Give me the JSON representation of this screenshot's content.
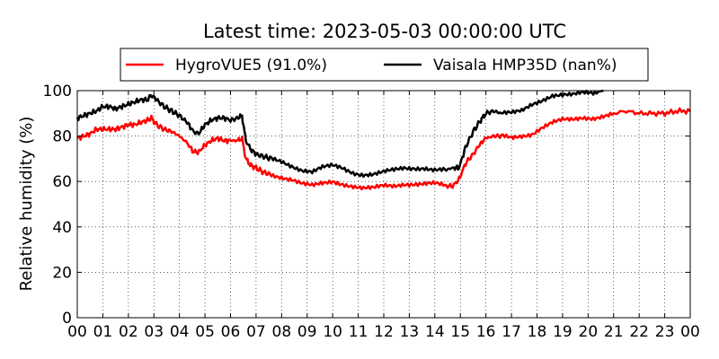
{
  "chart_data": {
    "type": "line",
    "title": "Latest time: 2023-05-03 00:00:00 UTC",
    "xlabel": "",
    "ylabel": "Relative humidity (%)",
    "xlim": [
      0,
      24
    ],
    "ylim": [
      0,
      100
    ],
    "x_ticks": [
      "00",
      "01",
      "02",
      "03",
      "04",
      "05",
      "06",
      "07",
      "08",
      "09",
      "10",
      "11",
      "12",
      "13",
      "14",
      "15",
      "16",
      "17",
      "18",
      "19",
      "20",
      "21",
      "22",
      "23",
      "00"
    ],
    "y_ticks": [
      0,
      20,
      40,
      60,
      80,
      100
    ],
    "grid": true,
    "legend_position": "top",
    "x_unit": "hour",
    "series": [
      {
        "name": "HygroVUE5 (91.0%)",
        "color": "#ff0000",
        "x": [
          0,
          0.25,
          0.5,
          0.75,
          1.0,
          1.25,
          1.5,
          1.75,
          2.0,
          2.25,
          2.5,
          2.75,
          2.9,
          3.1,
          3.4,
          3.7,
          4.0,
          4.3,
          4.55,
          4.75,
          5.0,
          5.25,
          5.5,
          5.75,
          6.0,
          6.3,
          6.45,
          6.6,
          6.8,
          7.0,
          7.3,
          7.6,
          8.0,
          8.4,
          8.8,
          9.2,
          9.6,
          10.0,
          10.4,
          10.8,
          11.2,
          11.6,
          12.0,
          12.4,
          12.8,
          13.2,
          13.6,
          14.0,
          14.4,
          14.7,
          14.95,
          15.2,
          15.5,
          15.8,
          16.0,
          16.3,
          16.6,
          17.0,
          17.4,
          17.8,
          18.2,
          18.6,
          19.0,
          19.4,
          19.8,
          20.2,
          20.6,
          21.0,
          21.5,
          22.0,
          22.5,
          23.0,
          23.5,
          24.0
        ],
        "y": [
          79,
          80,
          81,
          83,
          83,
          83,
          83,
          84,
          85,
          85,
          86,
          87,
          88,
          85,
          83,
          82,
          80,
          77,
          73,
          73,
          76,
          78,
          79,
          78,
          78,
          78,
          79,
          70,
          67,
          66,
          64,
          63,
          62,
          61,
          59,
          58,
          59,
          60,
          59,
          58,
          57,
          57,
          58,
          58,
          59,
          59,
          59,
          59,
          58,
          58,
          61,
          68,
          72,
          77,
          79,
          80,
          80,
          79,
          80,
          81,
          84,
          86,
          87,
          87,
          88,
          88,
          89,
          90,
          91,
          90,
          90,
          90,
          91,
          91
        ]
      },
      {
        "name": "Vaisala HMP35D (nan%)",
        "color": "#000000",
        "x": [
          0,
          0.25,
          0.5,
          0.75,
          1.0,
          1.25,
          1.5,
          1.75,
          2.0,
          2.25,
          2.5,
          2.75,
          2.9,
          3.1,
          3.4,
          3.7,
          4.0,
          4.3,
          4.55,
          4.75,
          5.0,
          5.25,
          5.5,
          5.75,
          6.0,
          6.3,
          6.45,
          6.6,
          6.8,
          7.0,
          7.3,
          7.6,
          8.0,
          8.4,
          8.8,
          9.2,
          9.6,
          10.0,
          10.4,
          10.8,
          11.2,
          11.6,
          12.0,
          12.4,
          12.8,
          13.2,
          13.6,
          14.0,
          14.4,
          14.7,
          14.95,
          15.2,
          15.5,
          15.8,
          16.0,
          16.3,
          16.6,
          17.0,
          17.4,
          17.8,
          18.2,
          18.6,
          19.0,
          19.4,
          19.8,
          20.2,
          20.6
        ],
        "y": [
          88,
          89,
          90,
          91,
          93,
          93,
          92,
          93,
          94,
          95,
          96,
          96,
          98,
          96,
          93,
          91,
          89,
          86,
          82,
          81,
          85,
          87,
          88,
          88,
          87,
          88,
          89,
          78,
          74,
          72,
          71,
          70,
          69,
          67,
          65,
          64,
          66,
          67,
          66,
          64,
          63,
          63,
          64,
          65,
          66,
          66,
          66,
          65,
          65,
          66,
          66,
          75,
          82,
          87,
          90,
          91,
          90,
          90,
          91,
          94,
          96,
          98,
          98,
          98,
          99,
          99,
          100
        ]
      }
    ]
  }
}
